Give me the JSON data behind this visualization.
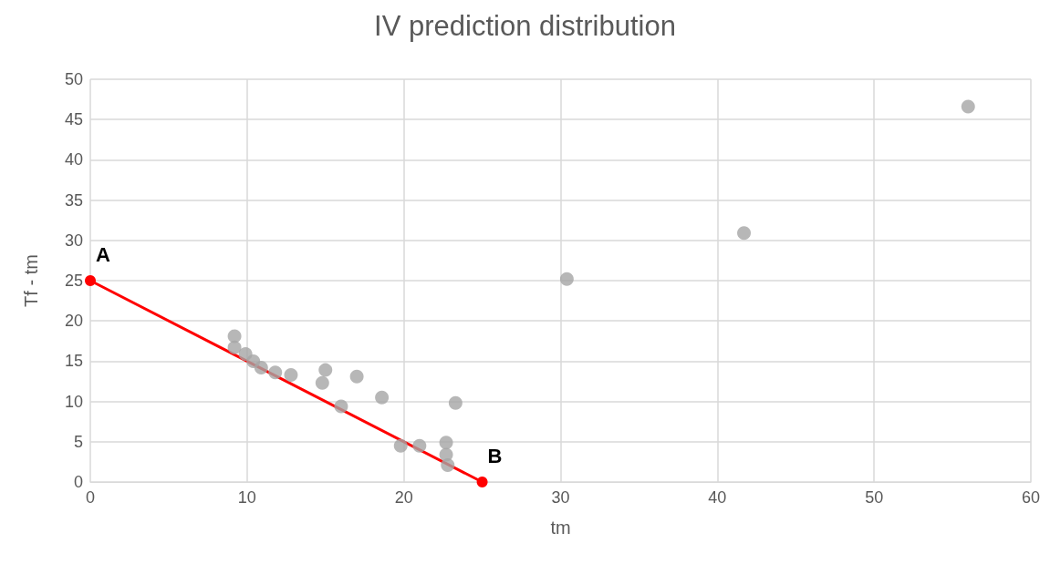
{
  "chart_data": {
    "type": "scatter",
    "title": "IV prediction distribution",
    "xlabel": "tm",
    "ylabel": "Tf - tm",
    "xlim": [
      0,
      60
    ],
    "xticks": [
      0,
      10,
      20,
      30,
      40,
      50,
      60
    ],
    "ylim": [
      0,
      50
    ],
    "yticks": [
      0,
      5,
      10,
      15,
      20,
      25,
      30,
      35,
      40,
      45,
      50
    ],
    "grid": true,
    "marker": "circle",
    "series": [
      {
        "color": "#a5a5a5",
        "x": [
          9.2,
          9.2,
          9.9,
          10.4,
          10.9,
          11.8,
          12.8,
          14.8,
          15.0,
          16.0,
          17.0,
          18.6,
          19.8,
          21.0,
          22.7,
          22.7,
          22.8,
          23.3,
          30.4,
          41.7,
          56.0
        ],
        "values": [
          18.1,
          16.7,
          15.9,
          15.0,
          14.2,
          13.6,
          13.3,
          12.3,
          13.9,
          9.4,
          13.1,
          10.5,
          4.5,
          4.5,
          4.9,
          3.4,
          2.1,
          9.8,
          25.2,
          30.9,
          46.6
        ]
      },
      {
        "type": "line",
        "color": "#ff0000",
        "line_style": "solid",
        "x": [
          0,
          25
        ],
        "values": [
          25,
          0
        ]
      }
    ],
    "annotations": [
      {
        "text": "A",
        "x": 0,
        "y": 25
      },
      {
        "text": "B",
        "x": 25,
        "y": 0
      }
    ]
  }
}
